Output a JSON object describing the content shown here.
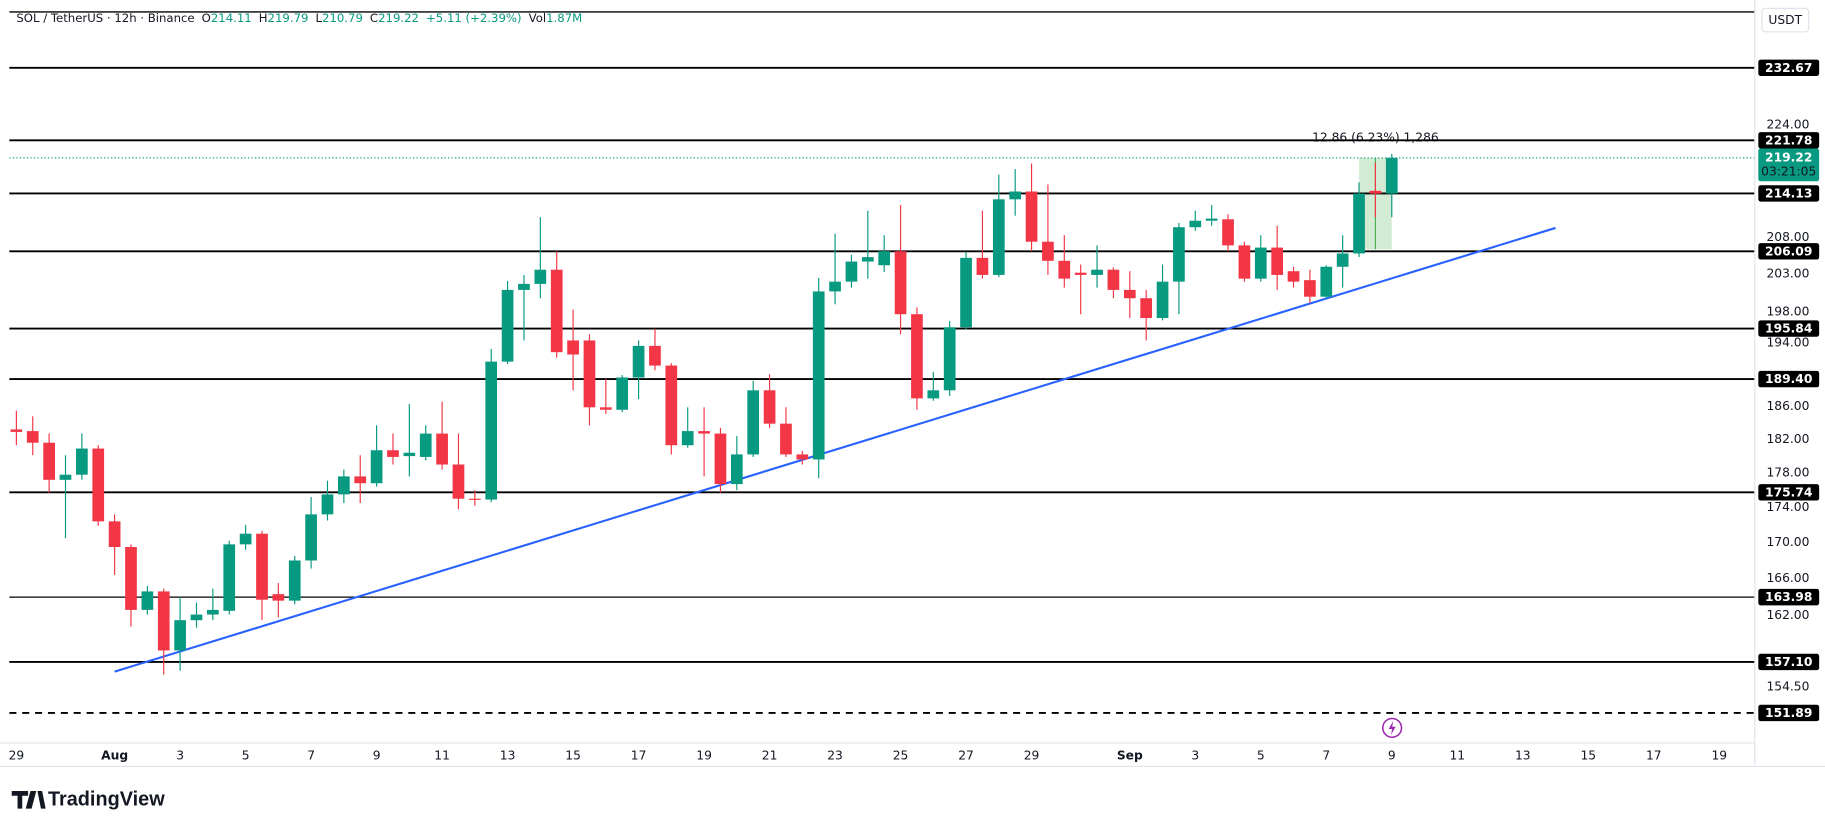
{
  "header": {
    "symbol": "SOL / TetherUS · 12h · Binance",
    "ohlc": [
      {
        "label": "O",
        "value": 214.11
      },
      {
        "label": "H",
        "value": 219.79
      },
      {
        "label": "L",
        "value": 210.79
      },
      {
        "label": "C",
        "value": 219.22
      }
    ],
    "change": "+5.11 (+2.39%)",
    "volume": {
      "label": "Vol",
      "value": "1.87M"
    }
  },
  "currency": "USDT",
  "brand": "TradingView",
  "chart_data": {
    "type": "candlestick",
    "log_scale": true,
    "grid": false,
    "up_color": "#089981",
    "down_color": "#f23645",
    "xlim": [
      -0.5,
      106.1
    ],
    "ylim": [
      148.9,
      243.3
    ],
    "xticks": [
      {
        "value": 0,
        "label": "29"
      },
      {
        "value": 6,
        "label": "Aug"
      },
      {
        "value": 10,
        "label": "3"
      },
      {
        "value": 14,
        "label": "5"
      },
      {
        "value": 18,
        "label": "7"
      },
      {
        "value": 22,
        "label": "9"
      },
      {
        "value": 26,
        "label": "11"
      },
      {
        "value": 30,
        "label": "13"
      },
      {
        "value": 34,
        "label": "15"
      },
      {
        "value": 38,
        "label": "17"
      },
      {
        "value": 42,
        "label": "19"
      },
      {
        "value": 46,
        "label": "21"
      },
      {
        "value": 50,
        "label": "23"
      },
      {
        "value": 54,
        "label": "25"
      },
      {
        "value": 58,
        "label": "27"
      },
      {
        "value": 62,
        "label": "29"
      },
      {
        "value": 68,
        "label": "Sep"
      },
      {
        "value": 72,
        "label": "3"
      },
      {
        "value": 76,
        "label": "5"
      },
      {
        "value": 80,
        "label": "7"
      },
      {
        "value": 84,
        "label": "9"
      },
      {
        "value": 88,
        "label": "11"
      },
      {
        "value": 92,
        "label": "13"
      },
      {
        "value": 96,
        "label": "15"
      },
      {
        "value": 100,
        "label": "17"
      },
      {
        "value": 104,
        "label": "19"
      }
    ],
    "yticks": [
      {
        "value": 224,
        "label": "224.00"
      },
      {
        "value": 208,
        "label": "208.00"
      },
      {
        "value": 203,
        "label": "203.00"
      },
      {
        "value": 198,
        "label": "198.00"
      },
      {
        "value": 194,
        "label": "194.00"
      },
      {
        "value": 186,
        "label": "186.00"
      },
      {
        "value": 182,
        "label": "182.00"
      },
      {
        "value": 178,
        "label": "178.00"
      },
      {
        "value": 174,
        "label": "174.00"
      },
      {
        "value": 170,
        "label": "170.00"
      },
      {
        "value": 166,
        "label": "166.00"
      },
      {
        "value": 162,
        "label": "162.00"
      },
      {
        "value": 154.5,
        "label": "154.50"
      }
    ],
    "open": [
      183.2,
      183.0,
      181.6,
      177.2,
      177.8,
      180.9,
      172.4,
      169.5,
      162.6,
      164.6,
      158.3,
      161.5,
      162.1,
      162.5,
      169.8,
      171.0,
      164.3,
      163.6,
      168.0,
      173.2,
      175.5,
      177.6,
      176.8,
      180.7,
      180.0,
      179.9,
      182.7,
      179.0,
      175.0,
      174.9,
      191.6,
      200.9,
      201.7,
      203.6,
      194.3,
      194.3,
      185.9,
      185.6,
      189.6,
      193.6,
      191.1,
      181.3,
      183.0,
      182.7,
      176.7,
      180.2,
      188.0,
      183.9,
      180.2,
      179.6,
      200.7,
      202.0,
      204.7,
      204.2,
      206.1,
      197.7,
      187.0,
      188.0,
      196.0,
      205.2,
      202.9,
      213.3,
      214.4,
      207.4,
      204.8,
      203.2,
      202.9,
      203.6,
      200.9,
      199.8,
      197.2,
      202.0,
      209.4,
      210.3,
      210.5,
      206.9,
      202.4,
      206.6,
      203.4,
      202.2,
      200.0,
      204.0,
      205.8,
      214.5,
      214.11
    ],
    "high": [
      185.5,
      184.8,
      182.7,
      180.1,
      182.7,
      181.3,
      173.2,
      169.8,
      165.2,
      164.9,
      164.0,
      163.4,
      164.9,
      170.2,
      172.0,
      171.3,
      165.5,
      168.5,
      175.2,
      177.1,
      178.4,
      180.1,
      183.7,
      182.7,
      186.3,
      183.7,
      186.6,
      182.7,
      176.0,
      193.2,
      202.1,
      202.9,
      210.8,
      206.1,
      198.3,
      195.1,
      189.4,
      189.9,
      194.3,
      195.8,
      191.4,
      185.9,
      185.9,
      183.4,
      182.4,
      189.2,
      190.0,
      185.9,
      180.6,
      202.5,
      208.5,
      205.6,
      211.7,
      208.3,
      212.5,
      198.6,
      190.3,
      196.8,
      206.0,
      211.7,
      216.8,
      217.6,
      218.4,
      215.4,
      208.3,
      204.3,
      206.9,
      203.9,
      203.4,
      200.9,
      204.3,
      210.0,
      211.7,
      212.5,
      211.2,
      207.4,
      208.3,
      209.6,
      204.0,
      203.6,
      204.2,
      208.3,
      215.7,
      218.5,
      219.79
    ],
    "low": [
      181.3,
      180.1,
      175.7,
      170.5,
      177.2,
      171.9,
      166.4,
      160.8,
      162.1,
      155.8,
      156.2,
      160.7,
      161.5,
      162.1,
      169.2,
      161.5,
      161.8,
      163.2,
      167.1,
      172.5,
      174.5,
      174.5,
      176.4,
      179.0,
      177.6,
      179.5,
      178.4,
      173.8,
      174.2,
      174.6,
      191.3,
      194.3,
      199.8,
      192.1,
      188.0,
      183.7,
      185.1,
      185.3,
      186.9,
      190.5,
      180.2,
      181.0,
      177.6,
      175.7,
      176.0,
      179.9,
      183.4,
      179.9,
      179.0,
      177.4,
      199.0,
      201.2,
      202.4,
      203.3,
      195.1,
      185.6,
      186.7,
      187.3,
      195.7,
      202.4,
      202.6,
      211.0,
      206.1,
      202.9,
      201.2,
      197.7,
      201.2,
      199.8,
      197.2,
      194.3,
      196.9,
      197.7,
      208.9,
      209.6,
      206.1,
      202.0,
      202.0,
      200.9,
      201.2,
      199.2,
      199.8,
      201.2,
      205.3,
      210.8,
      210.79
    ],
    "close": [
      182.9,
      181.6,
      177.2,
      177.8,
      180.9,
      172.4,
      169.5,
      162.6,
      164.6,
      158.3,
      161.5,
      162.1,
      162.6,
      169.8,
      171.0,
      163.7,
      163.6,
      168.0,
      173.2,
      175.5,
      177.6,
      176.8,
      180.7,
      179.9,
      180.4,
      182.7,
      179.0,
      175.0,
      174.9,
      191.6,
      200.9,
      201.7,
      203.6,
      192.8,
      192.5,
      185.9,
      185.6,
      189.6,
      193.6,
      191.1,
      181.3,
      183.0,
      182.7,
      176.7,
      180.2,
      188.0,
      183.9,
      180.2,
      179.6,
      200.7,
      202.0,
      204.7,
      205.3,
      206.1,
      197.7,
      187.0,
      188.0,
      196.0,
      205.2,
      202.9,
      213.3,
      214.4,
      207.4,
      204.8,
      202.4,
      202.9,
      203.6,
      200.9,
      199.8,
      197.2,
      202.0,
      209.4,
      210.3,
      210.6,
      206.9,
      202.4,
      206.6,
      202.9,
      202.0,
      200.0,
      204.0,
      205.8,
      214.1,
      214.1,
      219.22
    ],
    "levels": [
      {
        "value": 232.67,
        "label": "232.67"
      },
      {
        "value": 221.78,
        "label": "221.78"
      },
      {
        "value": 214.13,
        "label": "214.13"
      },
      {
        "value": 206.09,
        "label": "206.09"
      },
      {
        "value": 195.84,
        "label": "195.84"
      },
      {
        "value": 189.4,
        "label": "189.40"
      },
      {
        "value": 175.74,
        "label": "175.74"
      },
      {
        "value": 163.98,
        "label": "163.98",
        "thin": true
      },
      {
        "value": 157.1,
        "label": "157.10"
      },
      {
        "value": 151.89,
        "label": "151.89",
        "dashed": true
      }
    ],
    "level_color": "#000000",
    "trendline": {
      "color": "#2962ff",
      "x": [
        6,
        94
      ],
      "y": [
        156.1,
        209.3
      ]
    },
    "last_price": {
      "value": 219.22,
      "countdown": "03:21:05",
      "color": "#089981"
    },
    "measure": {
      "label": "12.86 (6.23%) 1,286",
      "x": [
        82,
        84
      ],
      "y": [
        206.36,
        219.22
      ],
      "color": "#089981"
    }
  }
}
